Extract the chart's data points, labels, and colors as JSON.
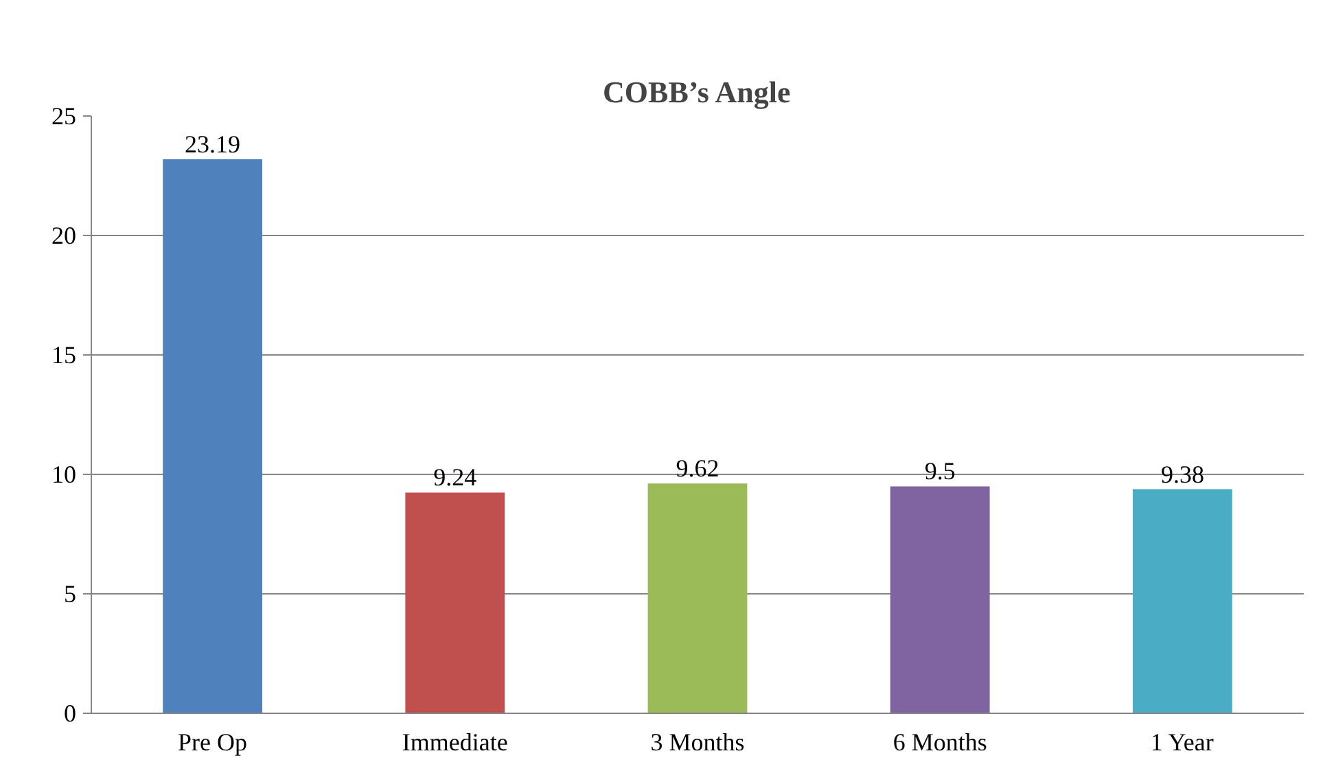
{
  "chart_data": {
    "type": "bar",
    "title": "COBB’s Angle",
    "categories": [
      "Pre Op",
      "Immediate",
      "3 Months",
      "6 Months",
      "1 Year"
    ],
    "values": [
      23.19,
      9.24,
      9.62,
      9.5,
      9.38
    ],
    "colors": [
      "#4f81bd",
      "#c0504d",
      "#9bbb59",
      "#8064a2",
      "#4bacc6"
    ],
    "ylim": [
      0,
      25
    ],
    "yticks": [
      0,
      5,
      10,
      15,
      20,
      25
    ],
    "grid": "y",
    "data_labels": true
  }
}
